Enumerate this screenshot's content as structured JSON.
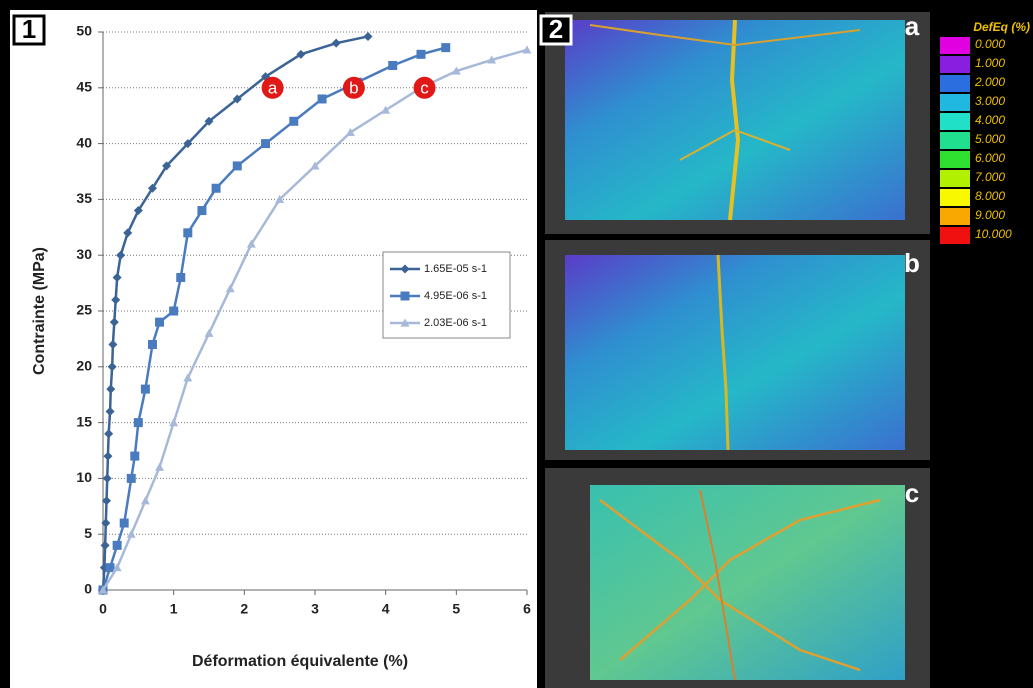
{
  "chart_data": {
    "type": "line",
    "xlabel": "Déformation équivalente (%)",
    "ylabel": "Contrainte (MPa)",
    "xlim": [
      0,
      6
    ],
    "ylim": [
      0,
      50
    ],
    "xticks": [
      0,
      1,
      2,
      3,
      4,
      5,
      6
    ],
    "yticks": [
      0,
      5,
      10,
      15,
      20,
      25,
      30,
      35,
      40,
      45,
      50
    ],
    "grid": true,
    "legend": "right",
    "series": [
      {
        "name": "1.65E-05 s-1",
        "color": "#3b6396",
        "marker": "diamond",
        "x": [
          0,
          0.02,
          0.03,
          0.04,
          0.05,
          0.06,
          0.07,
          0.08,
          0.1,
          0.11,
          0.13,
          0.14,
          0.16,
          0.18,
          0.2,
          0.25,
          0.35,
          0.5,
          0.7,
          0.9,
          1.2,
          1.5,
          1.9,
          2.3,
          2.8,
          3.3,
          3.75
        ],
        "values": [
          0,
          2,
          4,
          6,
          8,
          10,
          12,
          14,
          16,
          18,
          20,
          22,
          24,
          26,
          28,
          30,
          32,
          34,
          36,
          38,
          40,
          42,
          44,
          46,
          48,
          49,
          49.6
        ]
      },
      {
        "name": "4.95E-06 s-1",
        "color": "#4a7bbf",
        "marker": "square",
        "x": [
          0,
          0.1,
          0.2,
          0.3,
          0.4,
          0.45,
          0.5,
          0.6,
          0.7,
          0.8,
          1.0,
          1.1,
          1.2,
          1.4,
          1.6,
          1.9,
          2.3,
          2.7,
          3.1,
          3.6,
          4.1,
          4.5,
          4.85
        ],
        "values": [
          0,
          2,
          4,
          6,
          10,
          12,
          15,
          18,
          22,
          24,
          25,
          28,
          32,
          34,
          36,
          38,
          40,
          42,
          44,
          45.5,
          47,
          48,
          48.6
        ]
      },
      {
        "name": "2.03E-06 s-1",
        "color": "#a7b9d9",
        "marker": "triangle",
        "x": [
          0,
          0.2,
          0.4,
          0.6,
          0.8,
          1.0,
          1.2,
          1.5,
          1.8,
          2.1,
          2.5,
          3.0,
          3.5,
          4.0,
          4.5,
          5.0,
          5.5,
          6.0
        ],
        "values": [
          0,
          2,
          5,
          8,
          11,
          15,
          19,
          23,
          27,
          31,
          35,
          38,
          41,
          43,
          45,
          46.5,
          47.5,
          48.4
        ]
      }
    ],
    "annotations": [
      {
        "text": "a",
        "x": 2.4,
        "y": 45
      },
      {
        "text": "b",
        "x": 3.55,
        "y": 45
      },
      {
        "text": "c",
        "x": 4.55,
        "y": 45
      }
    ]
  },
  "panel_labels": [
    "1",
    "2"
  ],
  "image_labels": [
    "a",
    "b",
    "c"
  ],
  "colorbar": {
    "title": "DefEq (%)",
    "labels": [
      "0.000",
      "1.000",
      "2.000",
      "3.000",
      "4.000",
      "5.000",
      "6.000",
      "7.000",
      "8.000",
      "9.000",
      "10.000"
    ],
    "colors": [
      "#e000e0",
      "#8a1ee0",
      "#2a6ee0",
      "#20b8e0",
      "#20e0c8",
      "#20e090",
      "#30e030",
      "#b0f000",
      "#f8f800",
      "#f8a800",
      "#f01010"
    ]
  }
}
